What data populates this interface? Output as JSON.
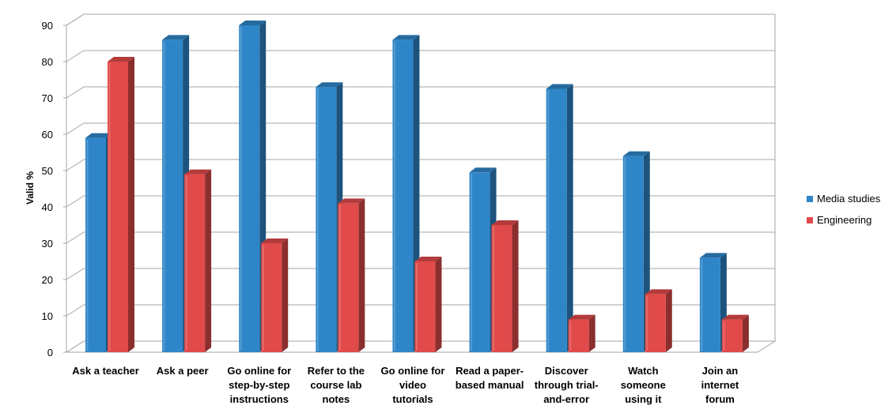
{
  "chart_data": {
    "type": "bar",
    "ylabel": "Valid %",
    "xlabel": "",
    "ylim": [
      0,
      90
    ],
    "yticks": [
      "0",
      "10",
      "20",
      "30",
      "40",
      "50",
      "60",
      "70",
      "80",
      "90"
    ],
    "grid": true,
    "legend_position": "right",
    "categories": [
      [
        "Ask a teacher"
      ],
      [
        "Ask a peer"
      ],
      [
        "Go online for",
        "step-by-step",
        "instructions"
      ],
      [
        "Refer to the",
        "course lab",
        "notes"
      ],
      [
        "Go online for",
        "video",
        "tutorials"
      ],
      [
        "Read a paper-",
        "based manual"
      ],
      [
        "Discover",
        "through trial-",
        "and-error"
      ],
      [
        "Watch",
        "someone",
        "using it"
      ],
      [
        "Join an",
        "internet",
        "forum"
      ]
    ],
    "series": [
      {
        "name": "Media studies",
        "color": "#2e86c8",
        "values": [
          59,
          86,
          90,
          73,
          86,
          49.5,
          72.5,
          54,
          26
        ]
      },
      {
        "name": "Engineering",
        "color": "#e04a4a",
        "values": [
          80,
          49,
          30,
          41,
          25,
          35,
          9,
          16,
          9
        ]
      }
    ]
  }
}
